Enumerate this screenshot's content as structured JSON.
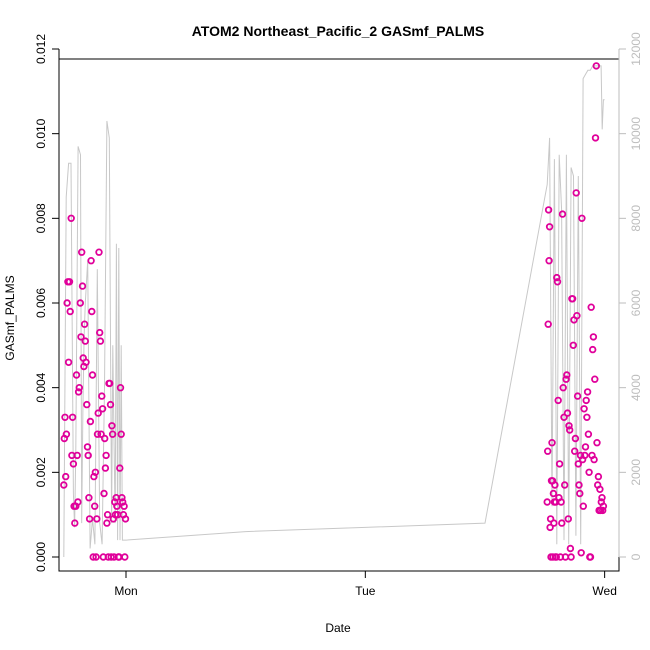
{
  "chart_data": {
    "type": "scatter",
    "title": "ATOM2 Northeast_Pacific_2 GASmf_PALMS",
    "xlabel": "Date",
    "ylabel": "GASmf_PALMS",
    "x_axis": {
      "min": -0.28,
      "max": 2.06,
      "ticks": [
        {
          "value": 0,
          "label": "Mon"
        },
        {
          "value": 1,
          "label": "Tue"
        },
        {
          "value": 2,
          "label": "Wed"
        }
      ]
    },
    "y_left": {
      "min": 0,
      "max": 0.012,
      "ticks": [
        {
          "value": 0.0,
          "label": "0.000"
        },
        {
          "value": 0.002,
          "label": "0.002"
        },
        {
          "value": 0.004,
          "label": "0.004"
        },
        {
          "value": 0.006,
          "label": "0.006"
        },
        {
          "value": 0.008,
          "label": "0.008"
        },
        {
          "value": 0.01,
          "label": "0.010"
        },
        {
          "value": 0.012,
          "label": "0.012"
        }
      ]
    },
    "y_right": {
      "min": 0,
      "max": 12000,
      "ticks": [
        {
          "value": 0,
          "label": "0"
        },
        {
          "value": 2000,
          "label": "2000"
        },
        {
          "value": 4000,
          "label": "4000"
        },
        {
          "value": 6000,
          "label": "6000"
        },
        {
          "value": 8000,
          "label": "8000"
        },
        {
          "value": 10000,
          "label": "10000"
        },
        {
          "value": 12000,
          "label": "12000"
        }
      ]
    },
    "colors": {
      "points": "#e0009a",
      "altitude_line": "#c8c8c8",
      "right_axis": "#bdbdbd"
    },
    "series": [
      {
        "type": "scatter",
        "x": [
          -0.26,
          -0.258,
          -0.255,
          -0.252,
          -0.249,
          -0.246,
          -0.243,
          -0.24,
          -0.236,
          -0.233,
          -0.229,
          -0.226,
          -0.223,
          -0.22,
          -0.217,
          -0.214,
          -0.21,
          -0.207,
          -0.204,
          -0.201,
          -0.198,
          -0.195,
          -0.191,
          -0.188,
          -0.185,
          -0.182,
          -0.179,
          -0.176,
          -0.173,
          -0.17,
          -0.167,
          -0.164,
          -0.161,
          -0.158,
          -0.155,
          -0.152,
          -0.149,
          -0.146,
          -0.143,
          -0.14,
          -0.137,
          -0.134,
          -0.131,
          -0.128,
          -0.125,
          -0.122,
          -0.119,
          -0.116,
          -0.113,
          -0.11,
          -0.107,
          -0.104,
          -0.101,
          -0.098,
          -0.095,
          -0.092,
          -0.089,
          -0.086,
          -0.083,
          -0.08,
          -0.077,
          -0.074,
          -0.071,
          -0.068,
          -0.065,
          -0.062,
          -0.059,
          -0.056,
          -0.053,
          -0.05,
          -0.047,
          -0.044,
          -0.041,
          -0.038,
          -0.035,
          -0.032,
          -0.029,
          -0.026,
          -0.023,
          -0.02,
          -0.017,
          -0.014,
          -0.011,
          -0.008,
          -0.005,
          -0.002,
          1.76,
          1.762,
          1.764,
          1.766,
          1.768,
          1.77,
          1.772,
          1.774,
          1.776,
          1.778,
          1.78,
          1.782,
          1.784,
          1.786,
          1.788,
          1.79,
          1.792,
          1.794,
          1.796,
          1.798,
          1.8,
          1.803,
          1.806,
          1.809,
          1.812,
          1.815,
          1.818,
          1.821,
          1.824,
          1.827,
          1.83,
          1.833,
          1.836,
          1.839,
          1.842,
          1.845,
          1.848,
          1.851,
          1.854,
          1.857,
          1.86,
          1.863,
          1.866,
          1.869,
          1.872,
          1.875,
          1.878,
          1.881,
          1.884,
          1.887,
          1.89,
          1.893,
          1.896,
          1.899,
          1.902,
          1.905,
          1.908,
          1.911,
          1.914,
          1.917,
          1.92,
          1.923,
          1.926,
          1.929,
          1.932,
          1.935,
          1.938,
          1.941,
          1.944,
          1.947,
          1.95,
          1.953,
          1.956,
          1.959,
          1.962,
          1.965,
          1.968,
          1.971,
          1.974,
          1.977,
          1.98,
          1.983,
          1.986,
          1.989,
          1.992,
          1.995
        ],
        "y": [
          0.0017,
          0.0028,
          0.0033,
          0.0019,
          0.0029,
          0.006,
          0.0065,
          0.0046,
          0.0065,
          0.0058,
          0.008,
          0.0024,
          0.0033,
          0.0022,
          0.0012,
          0.0008,
          0.0012,
          0.0043,
          0.0024,
          0.0013,
          0.0039,
          0.004,
          0.006,
          0.0052,
          0.0072,
          0.0064,
          0.0047,
          0.0045,
          0.0055,
          0.0051,
          0.0046,
          0.0036,
          0.0026,
          0.0024,
          0.0014,
          0.0009,
          0.0032,
          0.007,
          0.0058,
          0.0043,
          0.0,
          0.0019,
          0.0012,
          0.002,
          0.0,
          0.0009,
          0.0029,
          0.0034,
          0.0072,
          0.0053,
          0.0051,
          0.0029,
          0.0038,
          0.0035,
          0.0,
          0.0015,
          0.0028,
          0.0021,
          0.0024,
          0.0008,
          0.001,
          0.0,
          0.0041,
          0.0041,
          0.0036,
          0.0,
          0.0031,
          0.0029,
          0.0009,
          0.0,
          0.0013,
          0.001,
          0.0014,
          0.0012,
          0.001,
          0.0,
          0.0,
          0.0021,
          0.004,
          0.0029,
          0.0014,
          0.0013,
          0.001,
          0.0012,
          0.0,
          0.0009,
          0.0013,
          0.0025,
          0.0055,
          0.0082,
          0.007,
          0.0078,
          0.0007,
          0.0009,
          0.0,
          0.0018,
          0.0027,
          0.0018,
          0.0,
          0.0015,
          0.0008,
          0.0013,
          0.0017,
          0.0,
          0.0013,
          0.0,
          0.0066,
          0.0065,
          0.0037,
          0.0014,
          0.0022,
          0.0,
          0.0013,
          0.0008,
          0.0081,
          0.004,
          0.0033,
          0.0017,
          0.0,
          0.0042,
          0.0043,
          0.0034,
          0.0009,
          0.0031,
          0.003,
          0.0002,
          0.0,
          0.0061,
          0.0061,
          0.005,
          0.0056,
          0.0025,
          0.0028,
          0.0086,
          0.0057,
          0.0038,
          0.0022,
          0.0017,
          0.0015,
          0.0024,
          0.0001,
          0.008,
          0.0023,
          0.0012,
          0.0035,
          0.0024,
          0.0026,
          0.0037,
          0.0033,
          0.0039,
          0.0029,
          0.002,
          0.0,
          0.0,
          0.0059,
          0.0024,
          0.0049,
          0.0052,
          0.0023,
          0.0042,
          0.0099,
          0.0116,
          0.0027,
          0.0017,
          0.0019,
          0.0011,
          0.0016,
          0.0011,
          0.0013,
          0.0014,
          0.0011,
          0.0012
        ]
      },
      {
        "type": "line",
        "axis": "right",
        "x": [
          -0.26,
          -0.25,
          -0.24,
          -0.23,
          -0.22,
          -0.215,
          -0.21,
          -0.2,
          -0.19,
          -0.185,
          -0.18,
          -0.175,
          -0.17,
          -0.16,
          -0.15,
          -0.14,
          -0.13,
          -0.12,
          -0.11,
          -0.1,
          -0.09,
          -0.08,
          -0.07,
          -0.06,
          -0.055,
          -0.05,
          -0.045,
          -0.04,
          -0.035,
          -0.03,
          -0.025,
          -0.02,
          -0.015,
          -0.01,
          -0.005,
          0.0,
          0.5,
          1.0,
          1.5,
          1.76,
          1.77,
          1.78,
          1.79,
          1.8,
          1.81,
          1.82,
          1.83,
          1.84,
          1.85,
          1.86,
          1.87,
          1.88,
          1.89,
          1.9,
          1.91,
          1.92,
          1.93,
          1.94,
          1.95,
          1.96,
          1.97,
          1.975,
          1.98,
          1.985,
          1.99,
          1.995,
          2.0
        ],
        "y": [
          0,
          8500,
          9300,
          9300,
          1500,
          700,
          2500,
          9700,
          9500,
          800,
          3500,
          5200,
          6000,
          7000,
          200,
          900,
          300,
          6800,
          800,
          300,
          4000,
          10300,
          9900,
          800,
          5000,
          2800,
          800,
          7400,
          400,
          7300,
          400,
          5000,
          400,
          400,
          400,
          400,
          600,
          700,
          800,
          8800,
          9900,
          1200,
          9400,
          300,
          9500,
          8200,
          400,
          9500,
          300,
          9200,
          9000,
          500,
          9000,
          300,
          11300,
          11400,
          11500,
          11500,
          11600,
          11600,
          11600,
          11600,
          11600,
          11600,
          10100,
          10800,
          10800
        ]
      }
    ]
  }
}
